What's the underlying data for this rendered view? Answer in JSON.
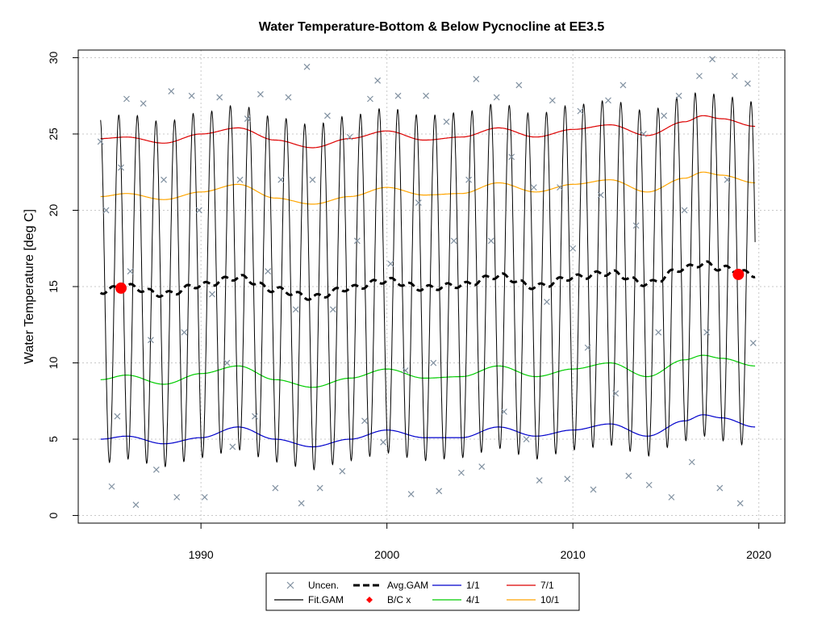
{
  "chart_data": {
    "type": "line",
    "title": "Water Temperature-Bottom & Below Pycnocline at EE3.5",
    "xlabel": "",
    "ylabel": "Water Temperature [deg C]",
    "xlim": [
      1983.4,
      2021.4
    ],
    "ylim": [
      -0.5,
      30.5
    ],
    "x_ticks": [
      1990,
      2000,
      2010,
      2020
    ],
    "y_ticks": [
      0,
      5,
      10,
      15,
      20,
      25,
      30
    ],
    "grid": true,
    "legend_position": "bottom-center",
    "legend": [
      {
        "label": "Uncen.",
        "symbol": "x",
        "color": "#8090a0"
      },
      {
        "label": "Fit.GAM",
        "symbol": "line",
        "color": "#000000"
      },
      {
        "label": "Avg.GAM",
        "symbol": "dashed",
        "color": "#000000"
      },
      {
        "label": "B/C x",
        "symbol": "diamond",
        "color": "#ff0000"
      },
      {
        "label": "1/1",
        "symbol": "line",
        "color": "#0000cc"
      },
      {
        "label": "4/1",
        "symbol": "line",
        "color": "#00cc00"
      },
      {
        "label": "7/1",
        "symbol": "line",
        "color": "#dd0000"
      },
      {
        "label": "10/1",
        "symbol": "line",
        "color": "#ffa500"
      }
    ],
    "series": [
      {
        "name": "1/1",
        "color": "#0000cc",
        "x": [
          1984.6,
          1986,
          1988,
          1990,
          1992,
          1994,
          1996,
          1998,
          2000,
          2002,
          2004,
          2006,
          2008,
          2010,
          2012,
          2014,
          2016,
          2017,
          2018,
          2019.8
        ],
        "y": [
          5.0,
          5.2,
          4.7,
          5.1,
          5.8,
          5.0,
          4.5,
          5.0,
          5.6,
          5.1,
          5.1,
          5.8,
          5.2,
          5.6,
          6.0,
          5.2,
          6.2,
          6.6,
          6.4,
          5.8
        ]
      },
      {
        "name": "4/1",
        "color": "#00cc00",
        "x": [
          1984.6,
          1986,
          1988,
          1990,
          1992,
          1994,
          1996,
          1998,
          2000,
          2002,
          2004,
          2006,
          2008,
          2010,
          2012,
          2014,
          2016,
          2017,
          2018,
          2019.8
        ],
        "y": [
          8.9,
          9.2,
          8.6,
          9.3,
          9.8,
          8.9,
          8.4,
          9.0,
          9.6,
          9.0,
          9.1,
          9.8,
          9.1,
          9.6,
          10.0,
          9.1,
          10.2,
          10.5,
          10.3,
          9.8
        ]
      },
      {
        "name": "7/1",
        "color": "#dd0000",
        "x": [
          1984.6,
          1986,
          1988,
          1990,
          1992,
          1994,
          1996,
          1998,
          2000,
          2002,
          2004,
          2006,
          2008,
          2010,
          2012,
          2014,
          2016,
          2017,
          2018,
          2019.8
        ],
        "y": [
          24.7,
          24.8,
          24.4,
          25.0,
          25.4,
          24.6,
          24.1,
          24.7,
          25.2,
          24.6,
          24.8,
          25.4,
          24.8,
          25.3,
          25.6,
          24.9,
          25.8,
          26.2,
          26.0,
          25.5
        ]
      },
      {
        "name": "10/1",
        "color": "#ffa500",
        "x": [
          1984.6,
          1986,
          1988,
          1990,
          1992,
          1994,
          1996,
          1998,
          2000,
          2002,
          2004,
          2006,
          2008,
          2010,
          2012,
          2014,
          2016,
          2017,
          2018,
          2019.8
        ],
        "y": [
          20.9,
          21.1,
          20.7,
          21.2,
          21.7,
          20.8,
          20.4,
          20.9,
          21.5,
          21.0,
          21.1,
          21.8,
          21.2,
          21.7,
          22.0,
          21.2,
          22.1,
          22.5,
          22.3,
          21.8
        ]
      },
      {
        "name": "Avg.GAM",
        "color": "#000000",
        "x": [
          1984.6,
          1986,
          1988,
          1990,
          1992,
          1994,
          1996,
          1998,
          2000,
          2002,
          2004,
          2006,
          2008,
          2010,
          2012,
          2014,
          2016,
          2017,
          2018,
          2019.8
        ],
        "y": [
          14.7,
          15.0,
          14.5,
          15.1,
          15.6,
          14.8,
          14.3,
          14.9,
          15.4,
          14.9,
          15.1,
          15.7,
          15.0,
          15.6,
          15.9,
          15.2,
          16.2,
          16.5,
          16.2,
          15.8
        ]
      },
      {
        "name": "Fit.GAM",
        "color": "#000000",
        "x_start": 1984.6,
        "x_end": 2019.8,
        "seasonal_amplitude": 11.3,
        "note_shape": "annual cycle around Avg.GAM, min ~3.5 in Feb-Mar, max ~26.5 in Aug"
      },
      {
        "name": "B/C x",
        "color": "#ff0000",
        "x": [
          1985.7,
          2018.9
        ],
        "y": [
          14.9,
          15.8
        ]
      },
      {
        "name": "Uncen.",
        "color": "#8090a0",
        "x": [
          1984.6,
          1984.9,
          1985.2,
          1985.5,
          1985.7,
          1986.0,
          1986.2,
          1986.5,
          1986.9,
          1987.3,
          1987.6,
          1988.0,
          1988.4,
          1988.7,
          1989.1,
          1989.5,
          1989.9,
          1990.2,
          1990.6,
          1991.0,
          1991.4,
          1991.7,
          1992.1,
          1992.5,
          1992.9,
          1993.2,
          1993.6,
          1994.0,
          1994.3,
          1994.7,
          1995.1,
          1995.4,
          1995.7,
          1996.0,
          1996.4,
          1996.8,
          1997.1,
          1997.6,
          1998.0,
          1998.4,
          1998.8,
          1999.1,
          1999.5,
          1999.8,
          2000.2,
          2000.6,
          2001.0,
          2001.3,
          2001.7,
          2002.1,
          2002.5,
          2002.8,
          2003.2,
          2003.6,
          2004.0,
          2004.4,
          2004.8,
          2005.1,
          2005.6,
          2005.9,
          2006.3,
          2006.7,
          2007.1,
          2007.5,
          2007.9,
          2008.2,
          2008.6,
          2008.9,
          2009.3,
          2009.7,
          2010.0,
          2010.4,
          2010.8,
          2011.1,
          2011.5,
          2011.9,
          2012.3,
          2012.7,
          2013.0,
          2013.4,
          2013.8,
          2014.1,
          2014.6,
          2014.9,
          2015.3,
          2015.7,
          2016.0,
          2016.4,
          2016.8,
          2017.2,
          2017.5,
          2017.9,
          2018.3,
          2018.7,
          2019.0,
          2019.4,
          2019.7
        ],
        "y": [
          24.5,
          20.0,
          1.9,
          6.5,
          22.8,
          27.3,
          16.0,
          0.7,
          27.0,
          11.5,
          3.0,
          22.0,
          27.8,
          1.2,
          12.0,
          27.5,
          20.0,
          1.2,
          14.5,
          27.4,
          10.0,
          4.5,
          22.0,
          26.0,
          6.5,
          27.6,
          16.0,
          1.8,
          22.0,
          27.4,
          13.5,
          0.8,
          29.4,
          22.0,
          1.8,
          26.2,
          13.5,
          2.9,
          24.8,
          18.0,
          6.2,
          27.3,
          28.5,
          4.8,
          16.5,
          27.5,
          9.5,
          1.4,
          20.5,
          27.5,
          10.0,
          1.6,
          25.8,
          18.0,
          2.8,
          22.0,
          28.6,
          3.2,
          18.0,
          27.4,
          6.8,
          23.5,
          28.2,
          5.0,
          21.5,
          2.3,
          14.0,
          27.2,
          21.5,
          2.4,
          17.5,
          26.5,
          11.0,
          1.7,
          21.0,
          27.2,
          8.0,
          28.2,
          2.6,
          19.0,
          25.0,
          2.0,
          12.0,
          26.2,
          1.2,
          27.5,
          20.0,
          3.5,
          28.8,
          12.0,
          29.9,
          1.8,
          22.0,
          28.8,
          0.8,
          28.3,
          11.3
        ]
      }
    ]
  }
}
